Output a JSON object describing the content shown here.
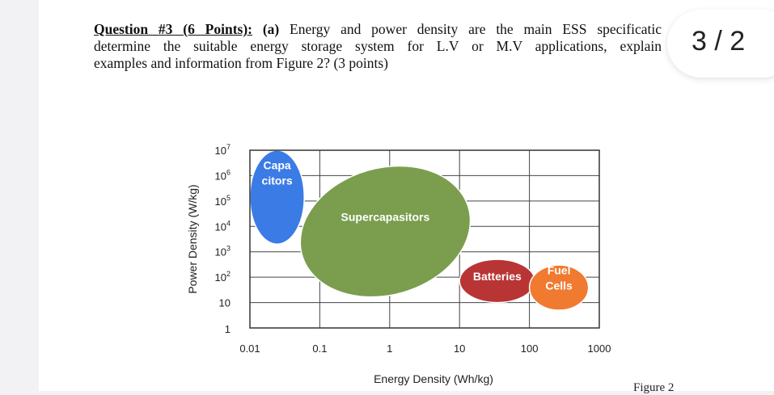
{
  "question": {
    "heading": "Question #3 (6 Points):",
    "part": "(a)",
    "line1_rest": "Energy and power density are the main ESS specificatic",
    "line2": "determine the suitable energy storage system for L.V or M.V applications, explain",
    "line3": "examples and information from Figure 2? (3 points)"
  },
  "pager": {
    "label": "3 / 2"
  },
  "figure_caption": "Figure 2",
  "chart_data": {
    "type": "area",
    "xlabel": "Energy Density (Wh/kg)",
    "ylabel": "Power Density (W/kg)",
    "x_scale": "log",
    "y_scale": "log",
    "xlim": [
      0.01,
      1000
    ],
    "ylim": [
      1,
      10000000
    ],
    "x_ticks": [
      "0.01",
      "0.1",
      "1",
      "10",
      "100",
      "1000"
    ],
    "y_ticks": [
      {
        "base": "1",
        "exp": ""
      },
      {
        "base": "10",
        "exp": ""
      },
      {
        "base": "10",
        "exp": "2"
      },
      {
        "base": "10",
        "exp": "3"
      },
      {
        "base": "10",
        "exp": "4"
      },
      {
        "base": "10",
        "exp": "5"
      },
      {
        "base": "10",
        "exp": "6"
      },
      {
        "base": "10",
        "exp": "7"
      }
    ],
    "grid": true,
    "regions": [
      {
        "label_lines": [
          "Capa",
          "citors"
        ],
        "color": "#3b7be6",
        "energy_range": [
          0.01,
          0.06
        ],
        "power_range": [
          2000,
          10000000
        ]
      },
      {
        "label_lines": [
          "Supercapasitors"
        ],
        "color": "#7a9e4e",
        "energy_range": [
          0.05,
          15
        ],
        "power_range": [
          20,
          2000000
        ]
      },
      {
        "label_lines": [
          "Batteries"
        ],
        "color": "#b93535",
        "energy_range": [
          10,
          120
        ],
        "power_range": [
          10,
          500
        ]
      },
      {
        "label_lines": [
          "Fuel",
          "Cells"
        ],
        "color": "#f07a30",
        "energy_range": [
          100,
          700
        ],
        "power_range": [
          5,
          300
        ]
      }
    ]
  }
}
